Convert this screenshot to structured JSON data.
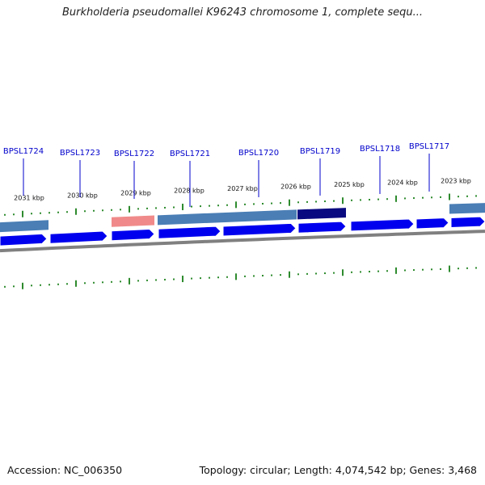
{
  "title": "Burkholderia pseudomallei K96243 chromosome 1, complete sequ...",
  "accession": "Accession: NC_006350",
  "summary": "Topology: circular; Length: 4,074,542 bp; Genes: 3,468",
  "colors": {
    "gene_arrow": "#0000ee",
    "feature_steel": "#4a7eb5",
    "feature_pink": "#f08a8a",
    "feature_navy": "#0a0a80",
    "backbone": "#808080",
    "tick": "#2e8b2e",
    "label": "#0000cc"
  },
  "kbp_ticks": [
    "2031 kbp",
    "2030 kbp",
    "2029 kbp",
    "2028 kbp",
    "2027 kbp",
    "2026 kbp",
    "2025 kbp",
    "2024 kbp",
    "2023 kbp"
  ],
  "gene_labels": [
    "BPSL1724",
    "BPSL1723",
    "BPSL1722",
    "BPSL1721",
    "BPSL1720",
    "BPSL1719",
    "BPSL1718",
    "BPSL1717"
  ]
}
